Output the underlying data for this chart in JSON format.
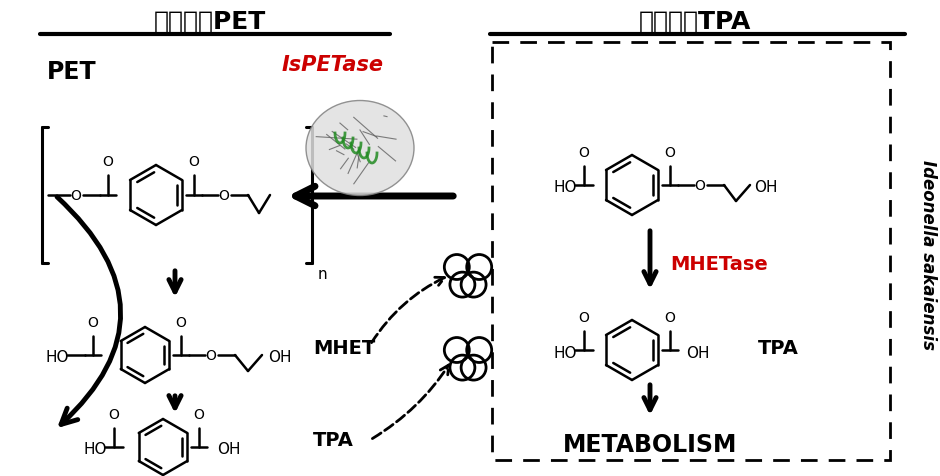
{
  "title_left": "胞外分解PET",
  "title_right": "胞内代谢TPA",
  "label_PET": "PET",
  "label_MHET": "MHET",
  "label_TPA_left": "TPA",
  "label_TPA_right": "TPA",
  "label_IsPETase": "IsPETase",
  "label_MHETase": "MHETase",
  "label_metabolism": "METABOLISM",
  "label_n": "n",
  "label_italic": "Ideonella sakaiensis",
  "color_red": "#cc0000",
  "color_black": "#000000",
  "color_white": "#ffffff",
  "bg_color": "#ffffff",
  "figsize": [
    9.4,
    4.76
  ],
  "dpi": 100
}
